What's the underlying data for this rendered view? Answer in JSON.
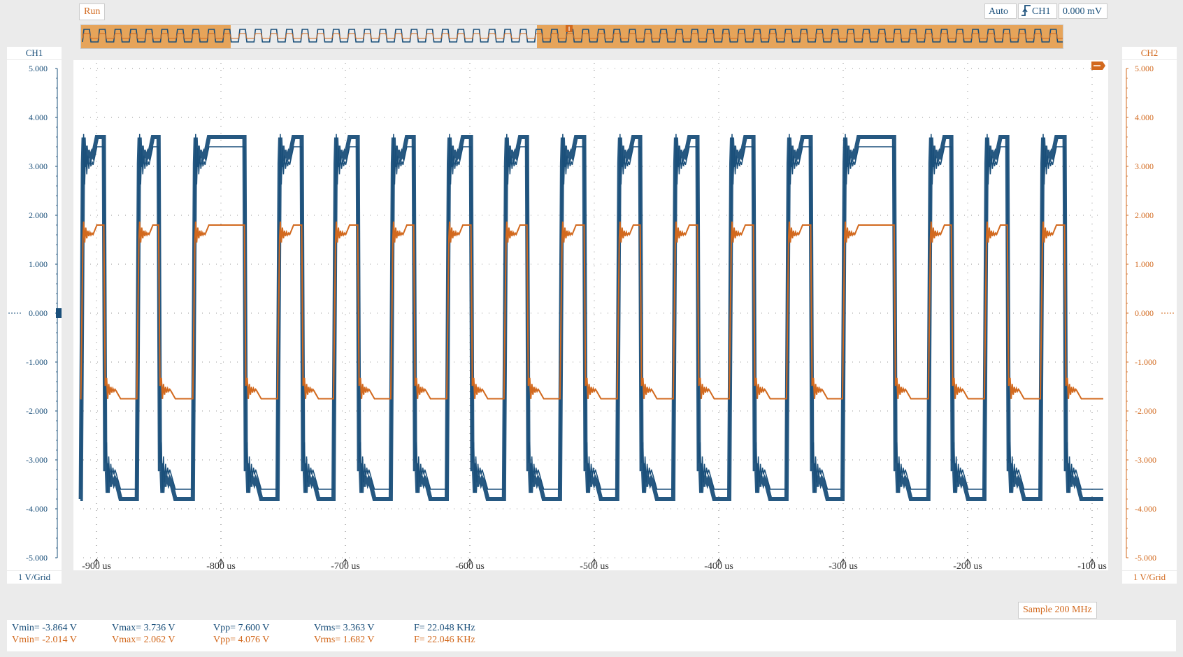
{
  "toolbar": {
    "run_label": "Run",
    "trigger_mode": "Auto",
    "trigger_channel": "CH1",
    "trigger_level": "0.000 mV"
  },
  "channels": {
    "ch1": {
      "label": "CH1",
      "scale": "1 V/Grid",
      "color": "#1a4f7a"
    },
    "ch2": {
      "label": "CH2",
      "scale": "1 V/Grid",
      "color": "#d2691e"
    }
  },
  "y_ticks": [
    "5.000",
    "4.000",
    "3.000",
    "2.000",
    "1.000",
    "0.000",
    "-1.000",
    "-2.000",
    "-3.000",
    "-4.000",
    "-5.000"
  ],
  "x_ticks": [
    "-900 us",
    "-800 us",
    "-700 us",
    "-600 us",
    "-500 us",
    "-400 us",
    "-300 us",
    "-200 us",
    "-100 us"
  ],
  "sample_label": "Sample 200 MHz",
  "measurements": {
    "ch1": {
      "vmin": "Vmin= -3.864 V",
      "vmax": "Vmax= 3.736 V",
      "vpp": "Vpp= 7.600 V",
      "vrms": "Vrms= 3.363 V",
      "freq": "F= 22.048 KHz"
    },
    "ch2": {
      "vmin": "Vmin= -2.014 V",
      "vmax": "Vmax= 2.062 V",
      "vpp": "Vpp= 4.076 V",
      "vrms": "Vrms= 1.682 V",
      "freq": "F= 22.046 KHz"
    }
  },
  "chart_data": {
    "type": "line",
    "xlim": [
      -917,
      -87
    ],
    "ylim": [
      -5,
      5
    ],
    "xunit": "us",
    "yunit": "V",
    "grid": true,
    "series": [
      {
        "name": "CH1",
        "color": "#1a4f7a",
        "high": 3.6,
        "low": -3.8
      },
      {
        "name": "CH2",
        "color": "#d2691e",
        "high": 1.8,
        "low": -1.75
      }
    ],
    "edges": [
      {
        "rise": -912,
        "fall": -893
      },
      {
        "rise": -867,
        "fall": -849
      },
      {
        "rise": -822,
        "fall": -780
      },
      {
        "rise": -754,
        "fall": -734
      },
      {
        "rise": -709,
        "fall": -689
      },
      {
        "rise": -663,
        "fall": -644
      },
      {
        "rise": -618,
        "fall": -598
      },
      {
        "rise": -572,
        "fall": -553
      },
      {
        "rise": -527,
        "fall": -507
      },
      {
        "rise": -481,
        "fall": -462
      },
      {
        "rise": -436,
        "fall": -416
      },
      {
        "rise": -391,
        "fall": -371
      },
      {
        "rise": -345,
        "fall": -325
      },
      {
        "rise": -300,
        "fall": -258
      },
      {
        "rise": -231,
        "fall": -212
      },
      {
        "rise": -186,
        "fall": -167
      },
      {
        "rise": -141,
        "fall": -121
      }
    ]
  }
}
